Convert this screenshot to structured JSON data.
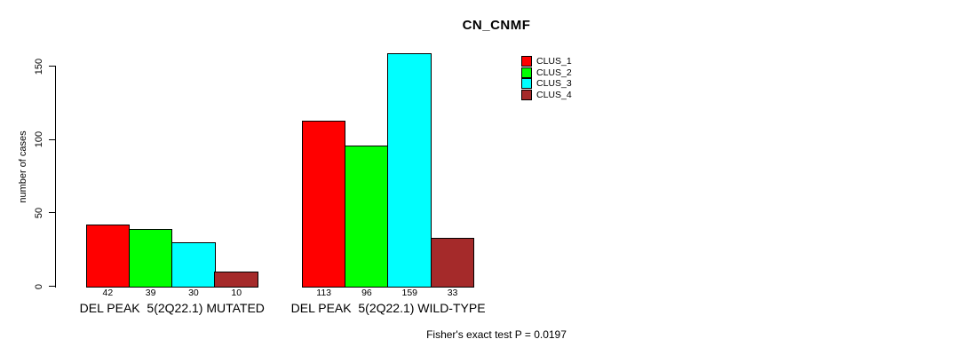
{
  "title": "CN_CNMF",
  "footer": {
    "text": "Fisher's exact test P = 0.0197"
  },
  "chart_data": {
    "type": "bar",
    "title": "CN_CNMF",
    "xlabel": "",
    "ylabel": "number of cases",
    "ylim": [
      0,
      150
    ],
    "yticks": [
      0,
      50,
      100,
      150
    ],
    "grid": false,
    "legend_position": "top-right",
    "bar_borders": true,
    "border_color": "#000000",
    "background_color": "#ffffff",
    "categories": [
      "DEL PEAK  5(2Q22.1) MUTATED",
      "DEL PEAK  5(2Q22.1) WILD-TYPE"
    ],
    "category_keys": [
      "mutated",
      "wild-type"
    ],
    "series": [
      {
        "name": "CLUS_1",
        "color": "#ff0000",
        "values": [
          42,
          113
        ]
      },
      {
        "name": "CLUS_2",
        "color": "#00ff00",
        "values": [
          39,
          96
        ]
      },
      {
        "name": "CLUS_3",
        "color": "#00ffff",
        "values": [
          30,
          159
        ]
      },
      {
        "name": "CLUS_4",
        "color": "#a52a2a",
        "values": [
          10,
          33
        ]
      }
    ],
    "annotation": "Fisher's exact test P = 0.0197"
  }
}
